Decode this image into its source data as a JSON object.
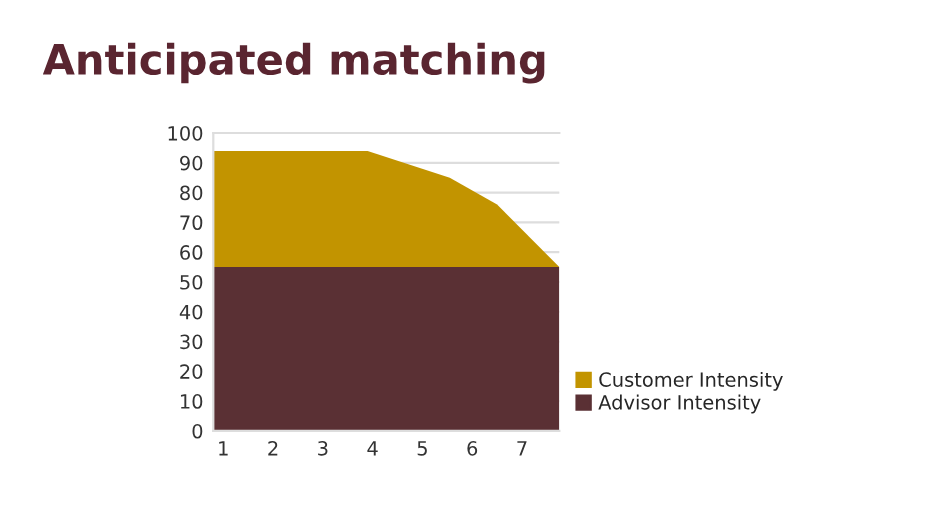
{
  "chart_data": {
    "type": "area",
    "title": "Anticipated matching",
    "stacked": true,
    "x": [
      0.8,
      3.9,
      5.55,
      6.5,
      7.75
    ],
    "series": [
      {
        "name": "Advisor Intensity",
        "color": "#5a3034",
        "values": [
          55,
          55,
          55,
          55,
          55
        ]
      },
      {
        "name": "Customer Intensity",
        "color": "#c29400",
        "values": [
          39,
          39,
          30,
          21,
          0
        ]
      }
    ],
    "xlim": [
      0.8,
      7.75
    ],
    "xticks": [
      1,
      2,
      3,
      4,
      5,
      6,
      7
    ],
    "ylim": [
      0,
      100
    ],
    "yticks": [
      0,
      10,
      20,
      30,
      40,
      50,
      60,
      70,
      80,
      90,
      100
    ],
    "grid": "y",
    "legend": "right"
  }
}
